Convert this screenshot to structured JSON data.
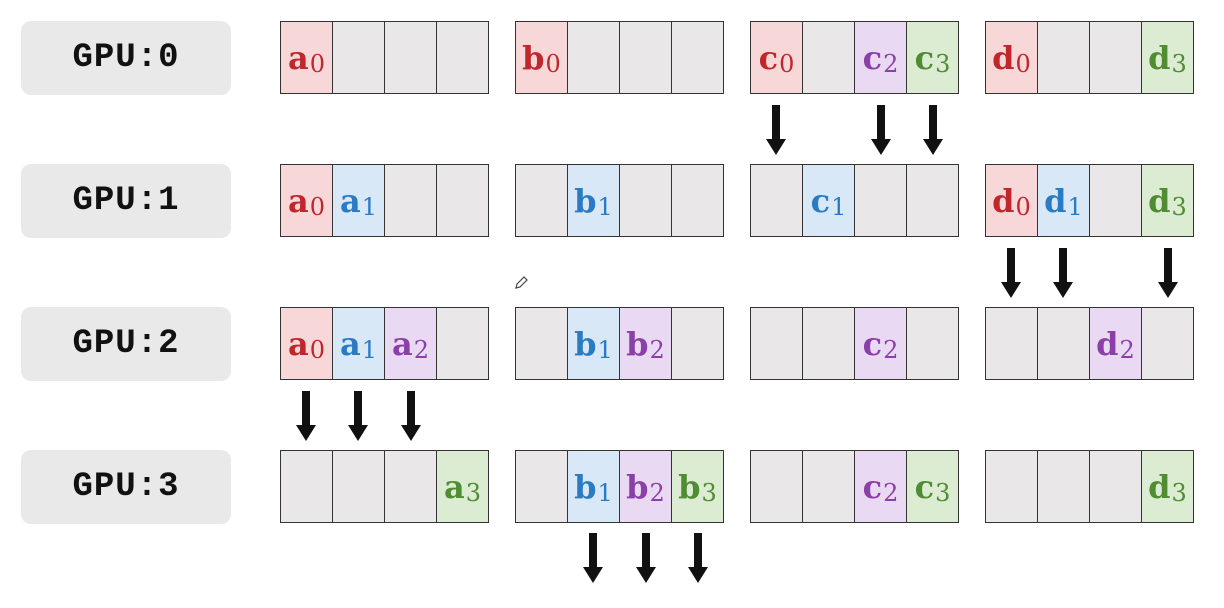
{
  "gpus": [
    {
      "label": "GPU:0",
      "blocks": [
        [
          {
            "l": "a",
            "s": "0",
            "c": "red"
          },
          {},
          {},
          {}
        ],
        [
          {
            "l": "b",
            "s": "0",
            "c": "red"
          },
          {},
          {},
          {}
        ],
        [
          {
            "l": "c",
            "s": "0",
            "c": "red"
          },
          {},
          {
            "l": "c",
            "s": "2",
            "c": "purple"
          },
          {
            "l": "c",
            "s": "3",
            "c": "green"
          }
        ],
        [
          {
            "l": "d",
            "s": "0",
            "c": "red"
          },
          {},
          {},
          {
            "l": "d",
            "s": "3",
            "c": "green"
          }
        ]
      ]
    },
    {
      "label": "GPU:1",
      "blocks": [
        [
          {
            "l": "a",
            "s": "0",
            "c": "red"
          },
          {
            "l": "a",
            "s": "1",
            "c": "blue"
          },
          {},
          {}
        ],
        [
          {},
          {
            "l": "b",
            "s": "1",
            "c": "blue"
          },
          {},
          {}
        ],
        [
          {},
          {
            "l": "c",
            "s": "1",
            "c": "blue"
          },
          {},
          {}
        ],
        [
          {
            "l": "d",
            "s": "0",
            "c": "red"
          },
          {
            "l": "d",
            "s": "1",
            "c": "blue"
          },
          {},
          {
            "l": "d",
            "s": "3",
            "c": "green"
          }
        ]
      ]
    },
    {
      "label": "GPU:2",
      "blocks": [
        [
          {
            "l": "a",
            "s": "0",
            "c": "red"
          },
          {
            "l": "a",
            "s": "1",
            "c": "blue"
          },
          {
            "l": "a",
            "s": "2",
            "c": "purple"
          },
          {}
        ],
        [
          {},
          {
            "l": "b",
            "s": "1",
            "c": "blue"
          },
          {
            "l": "b",
            "s": "2",
            "c": "purple"
          },
          {}
        ],
        [
          {},
          {},
          {
            "l": "c",
            "s": "2",
            "c": "purple"
          },
          {}
        ],
        [
          {},
          {},
          {
            "l": "d",
            "s": "2",
            "c": "purple"
          },
          {}
        ]
      ]
    },
    {
      "label": "GPU:3",
      "blocks": [
        [
          {},
          {},
          {},
          {
            "l": "a",
            "s": "3",
            "c": "green"
          }
        ],
        [
          {},
          {
            "l": "b",
            "s": "1",
            "c": "blue"
          },
          {
            "l": "b",
            "s": "2",
            "c": "purple"
          },
          {
            "l": "b",
            "s": "3",
            "c": "green"
          }
        ],
        [
          {},
          {},
          {
            "l": "c",
            "s": "2",
            "c": "purple"
          },
          {
            "l": "c",
            "s": "3",
            "c": "green"
          }
        ],
        [
          {},
          {},
          {},
          {
            "l": "d",
            "s": "3",
            "c": "green"
          }
        ]
      ]
    }
  ],
  "arrows": [
    {
      "after_gpu": 0,
      "block": 2,
      "cells": [
        0,
        2,
        3
      ]
    },
    {
      "after_gpu": 1,
      "block": 3,
      "cells": [
        0,
        1,
        3
      ]
    },
    {
      "after_gpu": 2,
      "block": 0,
      "cells": [
        0,
        1,
        2
      ]
    },
    {
      "after_gpu": 3,
      "block": 1,
      "cells": [
        1,
        2,
        3
      ]
    }
  ],
  "colors": {
    "red": "#c0272d",
    "blue": "#2a7bc4",
    "purple": "#8b3fa8",
    "green": "#4f8c32"
  },
  "icons": [
    "down-arrow-icon",
    "pencil-icon"
  ]
}
